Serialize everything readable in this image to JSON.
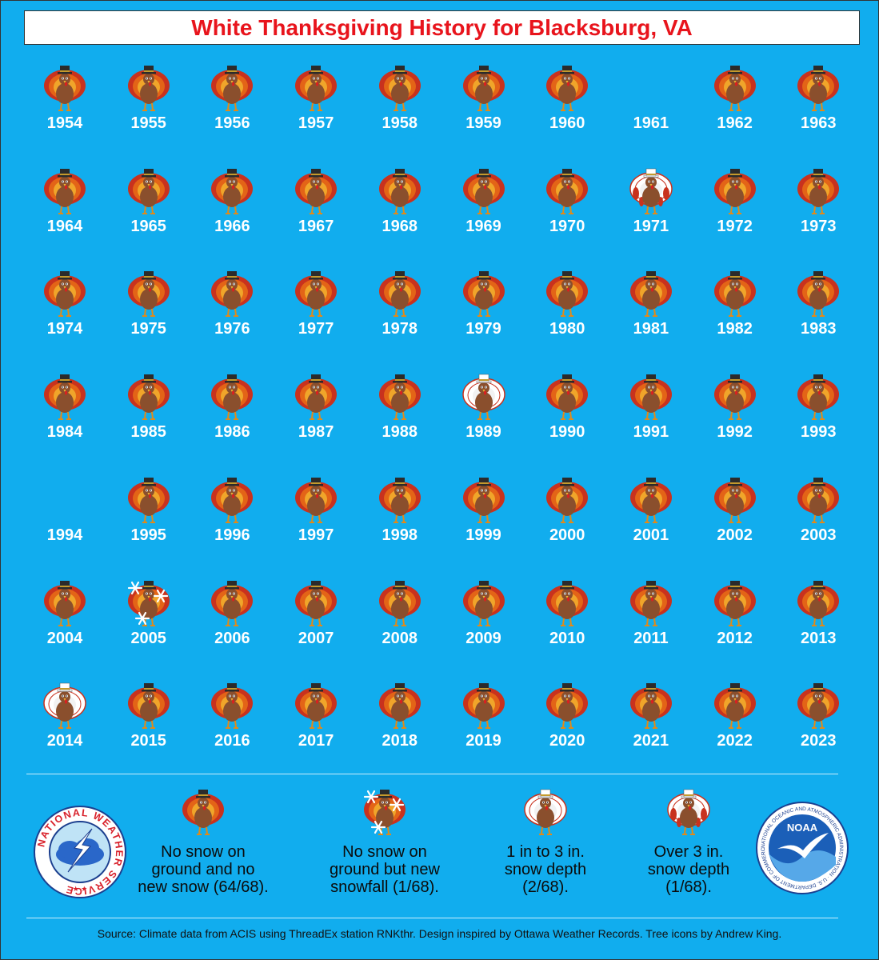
{
  "title": "White Thanksgiving History for Blacksburg, VA",
  "years": [
    {
      "year": "1954",
      "status": "none"
    },
    {
      "year": "1955",
      "status": "none"
    },
    {
      "year": "1956",
      "status": "none"
    },
    {
      "year": "1957",
      "status": "none"
    },
    {
      "year": "1958",
      "status": "none"
    },
    {
      "year": "1959",
      "status": "none"
    },
    {
      "year": "1960",
      "status": "none"
    },
    {
      "year": "1961",
      "status": "missing"
    },
    {
      "year": "1962",
      "status": "none"
    },
    {
      "year": "1963",
      "status": "none"
    },
    {
      "year": "1964",
      "status": "none"
    },
    {
      "year": "1965",
      "status": "none"
    },
    {
      "year": "1966",
      "status": "none"
    },
    {
      "year": "1967",
      "status": "none"
    },
    {
      "year": "1968",
      "status": "none"
    },
    {
      "year": "1969",
      "status": "none"
    },
    {
      "year": "1970",
      "status": "none"
    },
    {
      "year": "1971",
      "status": "over3"
    },
    {
      "year": "1972",
      "status": "none"
    },
    {
      "year": "1973",
      "status": "none"
    },
    {
      "year": "1974",
      "status": "none"
    },
    {
      "year": "1975",
      "status": "none"
    },
    {
      "year": "1976",
      "status": "none"
    },
    {
      "year": "1977",
      "status": "none"
    },
    {
      "year": "1978",
      "status": "none"
    },
    {
      "year": "1979",
      "status": "none"
    },
    {
      "year": "1980",
      "status": "none"
    },
    {
      "year": "1981",
      "status": "none"
    },
    {
      "year": "1982",
      "status": "none"
    },
    {
      "year": "1983",
      "status": "none"
    },
    {
      "year": "1984",
      "status": "none"
    },
    {
      "year": "1985",
      "status": "none"
    },
    {
      "year": "1986",
      "status": "none"
    },
    {
      "year": "1987",
      "status": "none"
    },
    {
      "year": "1988",
      "status": "none"
    },
    {
      "year": "1989",
      "status": "depth1to3"
    },
    {
      "year": "1990",
      "status": "none"
    },
    {
      "year": "1991",
      "status": "none"
    },
    {
      "year": "1992",
      "status": "none"
    },
    {
      "year": "1993",
      "status": "none"
    },
    {
      "year": "1994",
      "status": "missing"
    },
    {
      "year": "1995",
      "status": "none"
    },
    {
      "year": "1996",
      "status": "none"
    },
    {
      "year": "1997",
      "status": "none"
    },
    {
      "year": "1998",
      "status": "none"
    },
    {
      "year": "1999",
      "status": "none"
    },
    {
      "year": "2000",
      "status": "none"
    },
    {
      "year": "2001",
      "status": "none"
    },
    {
      "year": "2002",
      "status": "none"
    },
    {
      "year": "2003",
      "status": "none"
    },
    {
      "year": "2004",
      "status": "none"
    },
    {
      "year": "2005",
      "status": "newsnow"
    },
    {
      "year": "2006",
      "status": "none"
    },
    {
      "year": "2007",
      "status": "none"
    },
    {
      "year": "2008",
      "status": "none"
    },
    {
      "year": "2009",
      "status": "none"
    },
    {
      "year": "2010",
      "status": "none"
    },
    {
      "year": "2011",
      "status": "none"
    },
    {
      "year": "2012",
      "status": "none"
    },
    {
      "year": "2013",
      "status": "none"
    },
    {
      "year": "2014",
      "status": "depth1to3"
    },
    {
      "year": "2015",
      "status": "none"
    },
    {
      "year": "2016",
      "status": "none"
    },
    {
      "year": "2017",
      "status": "none"
    },
    {
      "year": "2018",
      "status": "none"
    },
    {
      "year": "2019",
      "status": "none"
    },
    {
      "year": "2020",
      "status": "none"
    },
    {
      "year": "2021",
      "status": "none"
    },
    {
      "year": "2022",
      "status": "none"
    },
    {
      "year": "2023",
      "status": "none"
    }
  ],
  "legend": [
    {
      "status": "none",
      "lines": [
        "No snow on",
        "ground and no",
        "new snow (64/68)."
      ]
    },
    {
      "status": "newsnow",
      "lines": [
        "No snow on",
        "ground but new",
        "snowfall (1/68)."
      ]
    },
    {
      "status": "depth1to3",
      "lines": [
        "1 in to 3 in.",
        "snow depth",
        "(2/68)."
      ]
    },
    {
      "status": "over3",
      "lines": [
        "Over 3 in.",
        "snow depth",
        "(1/68)."
      ]
    }
  ],
  "nws_logo_text": "NATIONAL WEATHER SERVICE",
  "noaa_logo_text": "NOAA",
  "noaa_ring_text": "NATIONAL OCEANIC AND ATMOSPHERIC ADMINISTRATION · U.S. DEPARTMENT OF COMMERCE",
  "source": "Source: Climate data from ACIS using ThreadEx station RNKthr. Design inspired by Ottawa Weather Records. Tree icons by Andrew King.",
  "colors": {
    "background": "#11adee",
    "title": "#e8141c",
    "year_text": "#ffffff"
  }
}
